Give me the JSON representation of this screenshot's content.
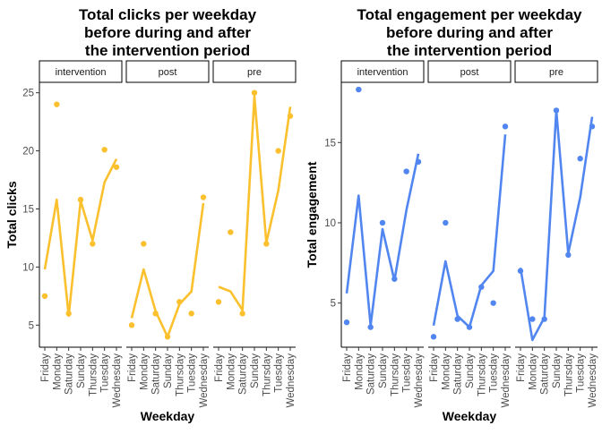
{
  "chart_data": [
    {
      "type": "line",
      "title": "Total clicks per weekday before during and after the intervention period",
      "title_lines": [
        "Total clicks per weekday",
        "before during and after",
        "the intervention period"
      ],
      "xlabel": "Weekday",
      "ylabel": "Total clicks",
      "color": "#FBC02D",
      "ylim": [
        3.1,
        25.9
      ],
      "yticks": [
        5,
        10,
        15,
        20,
        25
      ],
      "categories": [
        "Friday",
        "Monday",
        "Saturday",
        "Sunday",
        "Thursday",
        "Tuesday",
        "Wednesday"
      ],
      "facets": [
        {
          "name": "intervention",
          "points": [
            7.5,
            24,
            6,
            15.8,
            12,
            20.1,
            18.6
          ],
          "line": [
            9.8,
            15.8,
            5.8,
            15.7,
            12.3,
            17.3,
            19.3
          ]
        },
        {
          "name": "post",
          "points": [
            5,
            12,
            6,
            4,
            7,
            6,
            16
          ],
          "line": [
            5.6,
            9.8,
            6.2,
            4.0,
            6.8,
            7.9,
            15.5
          ]
        },
        {
          "name": "pre",
          "points": [
            7,
            13,
            6,
            25,
            12,
            20,
            23
          ],
          "line": [
            8.3,
            7.9,
            6.3,
            24.7,
            12.1,
            16.6,
            23.8
          ]
        }
      ]
    },
    {
      "type": "line",
      "title": "Total engagement per weekday before during and after the intervention period",
      "title_lines": [
        "Total engagement per weekday",
        "before during and after",
        "the intervention period"
      ],
      "xlabel": "Weekday",
      "ylabel": "Total engagement",
      "color": "#5186F0",
      "ylim": [
        2.25,
        18.75
      ],
      "yticks": [
        5,
        10,
        15
      ],
      "categories": [
        "Friday",
        "Monday",
        "Saturday",
        "Sunday",
        "Thursday",
        "Tuesday",
        "Wednesday"
      ],
      "facets": [
        {
          "name": "intervention",
          "points": [
            3.8,
            18.3,
            3.5,
            10,
            6.5,
            13.2,
            13.8
          ],
          "line": [
            5.6,
            11.7,
            3.6,
            9.6,
            6.4,
            10.8,
            14.3
          ]
        },
        {
          "name": "post",
          "points": [
            2.9,
            10,
            4,
            3.5,
            6,
            5,
            16
          ],
          "line": [
            3.6,
            7.6,
            4.2,
            3.5,
            6.1,
            7.0,
            15.5
          ]
        },
        {
          "name": "pre",
          "points": [
            7,
            4,
            4,
            17,
            8,
            14,
            16
          ],
          "line": [
            7.2,
            2.7,
            4.1,
            17.0,
            8.1,
            11.6,
            16.6
          ]
        }
      ]
    }
  ]
}
